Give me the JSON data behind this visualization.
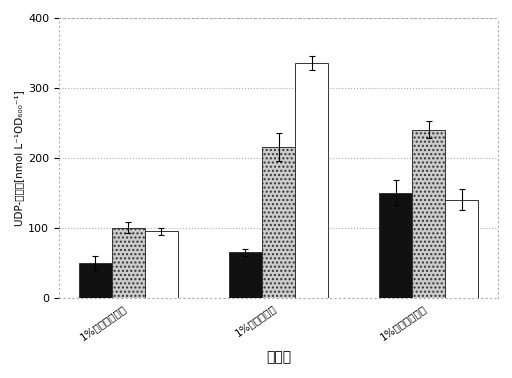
{
  "groups": [
    "1%グリセロール",
    "1%グルコース",
    "1%ガラクトース"
  ],
  "series": {
    "black": [
      50,
      65,
      150
    ],
    "dotted": [
      100,
      215,
      240
    ],
    "white": [
      95,
      335,
      140
    ]
  },
  "errors": {
    "black": [
      10,
      5,
      18
    ],
    "dotted": [
      8,
      20,
      12
    ],
    "white": [
      5,
      10,
      15
    ]
  },
  "ylim": [
    0,
    400
  ],
  "yticks": [
    0,
    100,
    200,
    300,
    400
  ],
  "ylabel": "UDP-糖濃度[nmol L⁻¹OD₆₀₀⁻¹]",
  "xlabel": "炭素源",
  "bar_width": 0.22,
  "colors": {
    "black": "#111111",
    "dotted": "#cccccc",
    "white": "#ffffff"
  },
  "edge_color": "#333333",
  "grid_color": "#aaaaaa",
  "background": "#ffffff"
}
